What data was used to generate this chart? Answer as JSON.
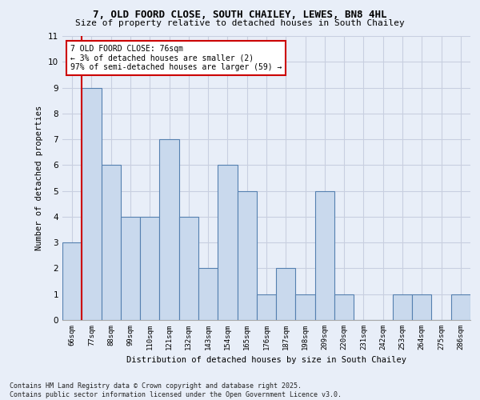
{
  "title1": "7, OLD FOORD CLOSE, SOUTH CHAILEY, LEWES, BN8 4HL",
  "title2": "Size of property relative to detached houses in South Chailey",
  "xlabel": "Distribution of detached houses by size in South Chailey",
  "ylabel": "Number of detached properties",
  "categories": [
    "66sqm",
    "77sqm",
    "88sqm",
    "99sqm",
    "110sqm",
    "121sqm",
    "132sqm",
    "143sqm",
    "154sqm",
    "165sqm",
    "176sqm",
    "187sqm",
    "198sqm",
    "209sqm",
    "220sqm",
    "231sqm",
    "242sqm",
    "253sqm",
    "264sqm",
    "275sqm",
    "286sqm"
  ],
  "values": [
    3,
    9,
    6,
    4,
    4,
    7,
    4,
    2,
    6,
    5,
    1,
    2,
    1,
    5,
    1,
    0,
    0,
    1,
    1,
    0,
    1
  ],
  "bar_color": "#c9d9ed",
  "bar_edge_color": "#5580b0",
  "grid_color": "#c8cfe0",
  "highlight_line_color": "#cc0000",
  "annotation_line1": "7 OLD FOORD CLOSE: 76sqm",
  "annotation_line2": "← 3% of detached houses are smaller (2)",
  "annotation_line3": "97% of semi-detached houses are larger (59) →",
  "annotation_box_color": "#cc0000",
  "ylim": [
    0,
    11
  ],
  "yticks": [
    0,
    1,
    2,
    3,
    4,
    5,
    6,
    7,
    8,
    9,
    10,
    11
  ],
  "footer_text": "Contains HM Land Registry data © Crown copyright and database right 2025.\nContains public sector information licensed under the Open Government Licence v3.0.",
  "bg_color": "#e8eef8",
  "plot_bg_color": "#e8eef8"
}
